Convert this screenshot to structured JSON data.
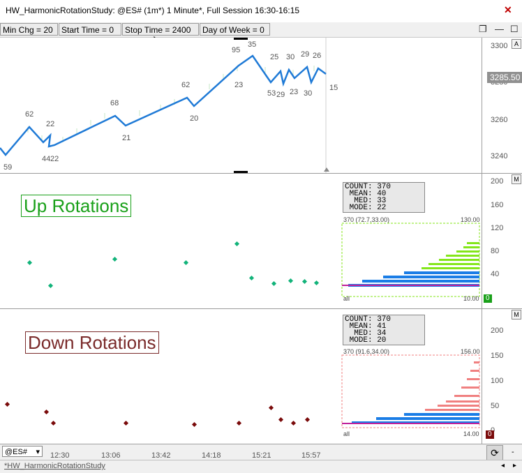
{
  "window": {
    "title": "HW_HarmonicRotationStudy: @ES# (1m*) 1 Minute*, Full Session 16:30-16:15"
  },
  "params": [
    {
      "label": "Min Chg = 20"
    },
    {
      "label": "Start Time = 0"
    },
    {
      "label": "Stop Time = 2400"
    },
    {
      "label": "Day of Week = 0"
    }
  ],
  "price_pane": {
    "axis_ticks": [
      "3300",
      "3280",
      "3260",
      "3240"
    ],
    "last_price": "3285.50",
    "corner_letter": "A",
    "swing_labels": [
      "59",
      "62",
      "44",
      "22",
      "22",
      "68",
      "21",
      "62",
      "20",
      "95",
      "35",
      "23",
      "25",
      "53",
      "29",
      "30",
      "23",
      "29",
      "30",
      "26",
      "15"
    ]
  },
  "up_pane": {
    "title": "Up Rotations",
    "corner_letter": "M",
    "axis_ticks": [
      "200",
      "160",
      "120",
      "80",
      "40",
      "0"
    ],
    "stats": {
      "count": "COUNT: 370",
      "mean": " MEAN: 40",
      "med": "  MED: 33",
      "mode": " MODE: 22"
    },
    "hist_header_left": "370 (72.7,33.00)",
    "hist_header_right": "130.00",
    "hist_footer_left": "all",
    "hist_footer_right": "10.00",
    "zero_tag": "0",
    "colors": {
      "accent": "#19a019",
      "dots": "#12b37a",
      "hist_top": "#84e61a",
      "hist_bottom": "#1a7de6",
      "mode_line": "#c0209a"
    }
  },
  "down_pane": {
    "title": "Down Rotations",
    "corner_letter": "M",
    "axis_ticks": [
      "200",
      "150",
      "100",
      "50",
      "0"
    ],
    "stats": {
      "count": "COUNT: 370",
      "mean": " MEAN: 41",
      "med": "  MED: 34",
      "mode": " MODE: 20"
    },
    "hist_header_left": "370 (91.6,34.00)",
    "hist_header_right": "156.00",
    "hist_footer_left": "all",
    "hist_footer_right": "14.00",
    "zero_tag": "0",
    "colors": {
      "accent": "#7a2a2a",
      "dots": "#7a0a0a",
      "hist_top": "#f08080",
      "hist_bottom": "#1a7de6",
      "mode_line": "#c0209a"
    }
  },
  "xaxis": {
    "symbol": "@ES#",
    "ticks": [
      "12:30",
      "13:06",
      "13:42",
      "14:18",
      "15:21",
      "15:57"
    ]
  },
  "status": {
    "tab": "*HW_HarmonicRotationStudy"
  }
}
